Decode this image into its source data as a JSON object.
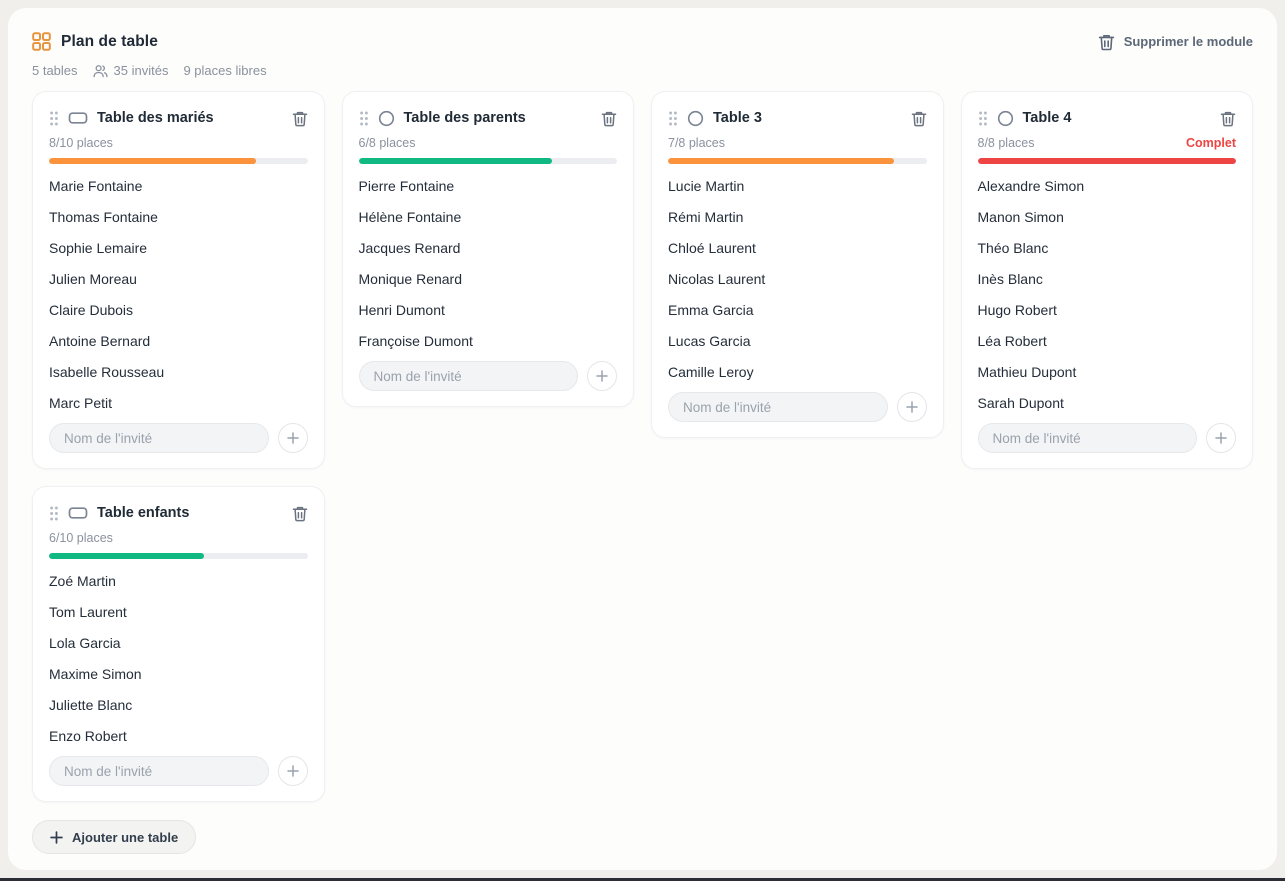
{
  "header": {
    "title": "Plan de table",
    "stats": {
      "tables": "5 tables",
      "guests": "35 invités",
      "free_places": "9 places libres"
    },
    "delete_module_label": "Supprimer le module"
  },
  "board": {
    "guest_input_placeholder": "Nom de l'invité",
    "add_table_label": "Ajouter une table",
    "tables": [
      {
        "name": "Table des mariés",
        "shape": "rectangle",
        "places": "8/10 places",
        "capacity_pct": 80,
        "bar_color": "#fb923c",
        "status": "",
        "guests": [
          "Marie Fontaine",
          "Thomas Fontaine",
          "Sophie Lemaire",
          "Julien Moreau",
          "Claire Dubois",
          "Antoine Bernard",
          "Isabelle Rousseau",
          "Marc Petit"
        ]
      },
      {
        "name": "Table des parents",
        "shape": "circle",
        "places": "6/8 places",
        "capacity_pct": 75,
        "bar_color": "#10b981",
        "status": "",
        "guests": [
          "Pierre Fontaine",
          "Hélène Fontaine",
          "Jacques Renard",
          "Monique Renard",
          "Henri Dumont",
          "Françoise Dumont"
        ]
      },
      {
        "name": "Table 3",
        "shape": "circle",
        "places": "7/8 places",
        "capacity_pct": 87.5,
        "bar_color": "#fb923c",
        "status": "",
        "guests": [
          "Lucie Martin",
          "Rémi Martin",
          "Chloé Laurent",
          "Nicolas Laurent",
          "Emma Garcia",
          "Lucas Garcia",
          "Camille Leroy"
        ]
      },
      {
        "name": "Table 4",
        "shape": "circle",
        "places": "8/8 places",
        "capacity_pct": 100,
        "bar_color": "#ef4444",
        "status": "Complet",
        "guests": [
          "Alexandre Simon",
          "Manon Simon",
          "Théo Blanc",
          "Inès Blanc",
          "Hugo Robert",
          "Léa Robert",
          "Mathieu Dupont",
          "Sarah Dupont"
        ]
      },
      {
        "name": "Table enfants",
        "shape": "rectangle",
        "places": "6/10 places",
        "capacity_pct": 60,
        "bar_color": "#10b981",
        "status": "",
        "guests": [
          "Zoé Martin",
          "Tom Laurent",
          "Lola Garcia",
          "Maxime Simon",
          "Juliette Blanc",
          "Enzo Robert"
        ]
      }
    ]
  },
  "colors": {
    "accent_orange": "#e8933d",
    "bar_orange": "#fb923c",
    "bar_green": "#10b981",
    "bar_red": "#ef4444",
    "status_red": "#ef4444"
  }
}
